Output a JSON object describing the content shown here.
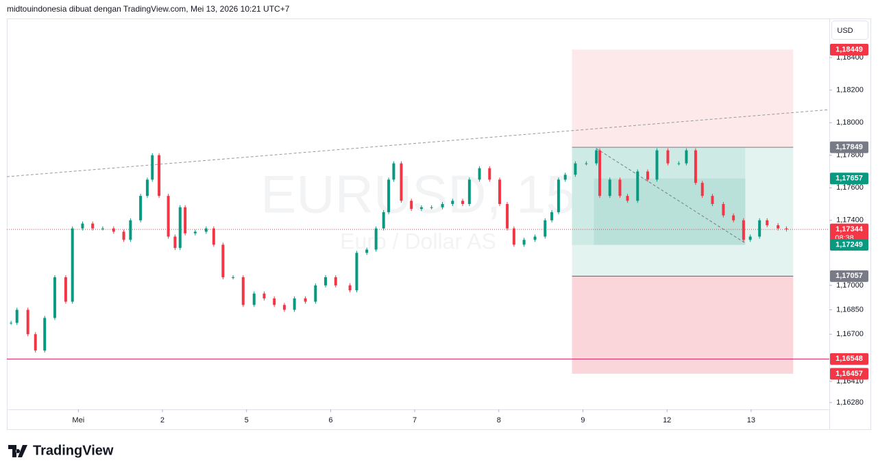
{
  "header": {
    "text": "midtouindonesia dibuat dengan TradingView.com, Mei 13, 2026 10:21 UTC+7"
  },
  "currency": "USD",
  "watermark": {
    "symbol": "EURUSD, 15",
    "name": "Euro / Dollar AS"
  },
  "logo": "TradingView",
  "chart_data": {
    "type": "candlestick",
    "x": [
      -0.8,
      -0.73,
      -0.6,
      -0.51,
      -0.4,
      -0.28,
      -0.15,
      -0.07,
      0.05,
      0.17,
      0.29,
      0.42,
      0.54,
      0.62,
      0.74,
      0.82,
      0.88,
      0.96,
      1.07,
      1.15,
      1.21,
      1.27,
      1.39,
      1.52,
      1.61,
      1.72,
      1.84,
      1.96,
      2.09,
      2.21,
      2.33,
      2.45,
      2.57,
      2.7,
      2.82,
      2.94,
      3.06,
      3.23,
      3.31,
      3.43,
      3.54,
      3.63,
      3.69,
      3.75,
      3.84,
      3.96,
      4.08,
      4.2,
      4.33,
      4.45,
      4.57,
      4.65,
      4.77,
      4.89,
      5.01,
      5.1,
      5.18,
      5.3,
      5.43,
      5.55,
      5.63,
      5.71,
      5.79,
      5.91,
      6.04,
      6.16,
      6.2,
      6.32,
      6.44,
      6.53,
      6.65,
      6.77,
      6.88,
      7.01,
      7.14,
      7.23,
      7.34,
      7.42,
      7.54,
      7.67,
      7.79,
      7.91,
      7.99,
      8.1,
      8.19,
      8.32,
      8.42
    ],
    "values": [
      1.1677,
      1.1685,
      1.167,
      1.166,
      1.168,
      1.1705,
      1.169,
      1.1735,
      1.1738,
      1.1735,
      1.1735,
      1.1733,
      1.1728,
      1.174,
      1.1755,
      1.1765,
      1.178,
      1.1755,
      1.173,
      1.1723,
      1.1748,
      1.1732,
      1.1733,
      1.1735,
      1.1725,
      1.1705,
      1.1705,
      1.1688,
      1.1695,
      1.1692,
      1.1688,
      1.1685,
      1.1692,
      1.169,
      1.17,
      1.1705,
      1.17,
      1.1697,
      1.172,
      1.1722,
      1.1735,
      1.1745,
      1.1765,
      1.1775,
      1.1752,
      1.1747,
      1.1748,
      1.1748,
      1.175,
      1.1752,
      1.175,
      1.1765,
      1.1772,
      1.1765,
      1.175,
      1.1735,
      1.1725,
      1.1728,
      1.173,
      1.174,
      1.1745,
      1.1765,
      1.1768,
      1.1775,
      1.1775,
      1.1783,
      1.1755,
      1.1765,
      1.1755,
      1.1752,
      1.177,
      1.1765,
      1.1783,
      1.1775,
      1.1775,
      1.1783,
      1.1763,
      1.1755,
      1.175,
      1.1743,
      1.174,
      1.1728,
      1.173,
      1.174,
      1.1737,
      1.1735,
      1.17344
    ],
    "up_color": "#089981",
    "down_color": "#f23645",
    "xlim": [
      -0.85,
      8.93
    ],
    "xticks": [
      {
        "value": 0,
        "label": "Mei"
      },
      {
        "value": 1,
        "label": "2"
      },
      {
        "value": 2,
        "label": "5"
      },
      {
        "value": 3,
        "label": "6"
      },
      {
        "value": 4,
        "label": "7"
      },
      {
        "value": 5,
        "label": "8"
      },
      {
        "value": 6,
        "label": "9"
      },
      {
        "value": 7,
        "label": "12"
      },
      {
        "value": 8,
        "label": "13"
      }
    ],
    "ylim": [
      1.16238,
      1.18636
    ],
    "yticks": [
      {
        "value": 1.184,
        "label": "1,18400"
      },
      {
        "value": 1.182,
        "label": "1,18200"
      },
      {
        "value": 1.18,
        "label": "1,18000"
      },
      {
        "value": 1.178,
        "label": "1,17800"
      },
      {
        "value": 1.176,
        "label": "1,17600"
      },
      {
        "value": 1.174,
        "label": "1,17400"
      },
      {
        "value": 1.17,
        "label": "1,17000"
      },
      {
        "value": 1.1685,
        "label": "1,16850"
      },
      {
        "value": 1.167,
        "label": "1,16700"
      },
      {
        "value": 1.1641,
        "label": "1,16410"
      },
      {
        "value": 1.1628,
        "label": "1,16280"
      }
    ],
    "zones": [
      {
        "x": [
          5.87,
          8.5
        ],
        "y": [
          1.17849,
          1.18449
        ],
        "color": "#fde9ea"
      },
      {
        "x": [
          5.87,
          8.5
        ],
        "y": [
          1.17057,
          1.17849
        ],
        "color": "#e3f3f0"
      },
      {
        "x": [
          5.87,
          7.93
        ],
        "y": [
          1.17249,
          1.17849
        ],
        "color": "#cdeae5"
      },
      {
        "x": [
          6.13,
          7.93
        ],
        "y": [
          1.17249,
          1.17657
        ],
        "color": "#b9e1da"
      },
      {
        "x": [
          5.87,
          8.5
        ],
        "y": [
          1.16457,
          1.17057
        ],
        "color": "#fad6da"
      }
    ],
    "lines": [
      {
        "x": [
          -0.85,
          8.93
        ],
        "y": [
          1.17668,
          1.1808
        ],
        "color": "#9598a1",
        "style": "dashed"
      },
      {
        "x": [
          6.16,
          7.93
        ],
        "y": [
          1.17841,
          1.1726
        ],
        "color": "#787b86",
        "style": "dashed"
      },
      {
        "x": [
          -0.85,
          8.93
        ],
        "y": [
          1.16548,
          1.16548
        ],
        "color": "#d81b60",
        "style": "solid"
      },
      {
        "x": [
          -0.85,
          8.93
        ],
        "y": [
          1.17344,
          1.17344
        ],
        "color": "#f23645",
        "style": "dotted"
      },
      {
        "x": [
          5.87,
          8.5
        ],
        "y": [
          1.17849,
          1.17849
        ],
        "color": "#787b86",
        "style": "solid"
      },
      {
        "x": [
          5.87,
          8.5
        ],
        "y": [
          1.17057,
          1.17057
        ],
        "color": "#5d606b",
        "style": "solid"
      }
    ],
    "price_labels": [
      {
        "value": 1.18449,
        "label": "1,18449",
        "color": "#f23645"
      },
      {
        "value": 1.17849,
        "label": "1,17849",
        "color": "#787b86"
      },
      {
        "value": 1.17657,
        "label": "1,17657",
        "color": "#089981"
      },
      {
        "value": 1.17344,
        "label": "1,17344",
        "color": "#f23645"
      },
      {
        "value": 1.17249,
        "label": "1,17249",
        "color": "#089981"
      },
      {
        "value": 1.17057,
        "label": "1,17057",
        "color": "#787b86"
      },
      {
        "value": 1.16548,
        "label": "1,16548",
        "color": "#f23645"
      },
      {
        "value": 1.16457,
        "label": "1,16457",
        "color": "#f23645"
      }
    ],
    "countdown": "08:38"
  }
}
